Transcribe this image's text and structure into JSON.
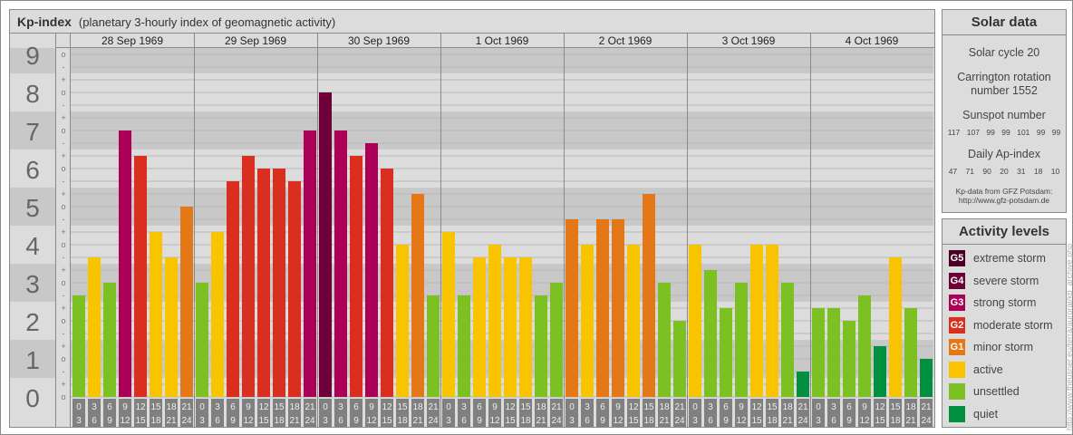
{
  "header": {
    "title": "Kp-index",
    "subtitle": "(planetary 3-hourly index of geomagnetic activity)"
  },
  "chart_data": {
    "type": "bar",
    "title": "Kp-index",
    "ylabel": "Kp",
    "ylim": [
      0,
      9
    ],
    "y_ticks": [
      "0",
      "1",
      "2",
      "3",
      "4",
      "5",
      "6",
      "7",
      "8",
      "9"
    ],
    "minor_ticks": [
      "-",
      "o",
      "+"
    ],
    "days": [
      "28 Sep 1969",
      "29 Sep 1969",
      "30 Sep 1969",
      "1 Oct 1969",
      "2 Oct 1969",
      "3 Oct 1969",
      "4 Oct 1969"
    ],
    "intervals": [
      [
        "0",
        "3"
      ],
      [
        "3",
        "6"
      ],
      [
        "6",
        "9"
      ],
      [
        "9",
        "12"
      ],
      [
        "12",
        "15"
      ],
      [
        "15",
        "18"
      ],
      [
        "18",
        "21"
      ],
      [
        "21",
        "24"
      ]
    ],
    "values_in_thirds_note": "Kp values as decimals (x- = x-1/3, x+ = x+1/3)",
    "values": [
      [
        2.667,
        3.667,
        3.0,
        7.0,
        6.333,
        4.333,
        3.667,
        5.0
      ],
      [
        3.0,
        4.333,
        5.667,
        6.333,
        6.0,
        6.0,
        5.667,
        7.0
      ],
      [
        8.0,
        7.0,
        6.333,
        6.667,
        6.0,
        4.0,
        5.333,
        2.667
      ],
      [
        4.333,
        2.667,
        3.667,
        4.0,
        3.667,
        3.667,
        2.667,
        3.0
      ],
      [
        4.667,
        4.0,
        4.667,
        4.667,
        4.0,
        5.333,
        3.0,
        2.0
      ],
      [
        4.0,
        3.333,
        2.333,
        3.0,
        4.0,
        4.0,
        3.0,
        0.667
      ],
      [
        2.333,
        2.333,
        2.0,
        2.667,
        1.333,
        3.667,
        2.333,
        1.0
      ]
    ]
  },
  "solar": {
    "title": "Solar data",
    "cycle": "Solar cycle 20",
    "carrington1": "Carrington rotation",
    "carrington2": "number 1552",
    "sunspot_label": "Sunspot number",
    "sunspots": [
      "117",
      "107",
      "99",
      "99",
      "101",
      "99",
      "99"
    ],
    "ap_label": "Daily Ap-index",
    "ap": [
      "47",
      "71",
      "90",
      "20",
      "31",
      "18",
      "10"
    ],
    "source1": "Kp-data from GFZ Potsdam:",
    "source2": "http://www.gfz-potsdam.de"
  },
  "levels": {
    "title": "Activity levels",
    "items": [
      {
        "code": "G5",
        "label": "extreme storm",
        "color": "#4c0026"
      },
      {
        "code": "G4",
        "label": "severe storm",
        "color": "#6e0038"
      },
      {
        "code": "G3",
        "label": "strong storm",
        "color": "#ab0055"
      },
      {
        "code": "G2",
        "label": "moderate storm",
        "color": "#da2f1e"
      },
      {
        "code": "G1",
        "label": "minor storm",
        "color": "#e57816"
      },
      {
        "code": "",
        "label": "active",
        "color": "#f8c400"
      },
      {
        "code": "",
        "label": "unsettled",
        "color": "#7cc021"
      },
      {
        "code": "",
        "label": "quiet",
        "color": "#009040"
      }
    ]
  },
  "credit": "http://www.fheusner.eu/terra/auroral/kp_archive.php"
}
